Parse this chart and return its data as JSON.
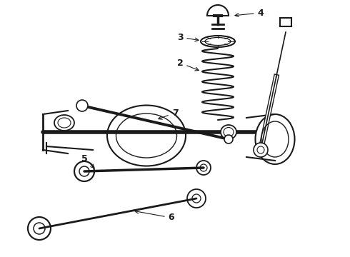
{
  "bg_color": "#ffffff",
  "line_color": "#1a1a1a",
  "fig_width": 4.9,
  "fig_height": 3.6,
  "dpi": 100,
  "xlim": [
    0,
    490
  ],
  "ylim": [
    0,
    360
  ]
}
